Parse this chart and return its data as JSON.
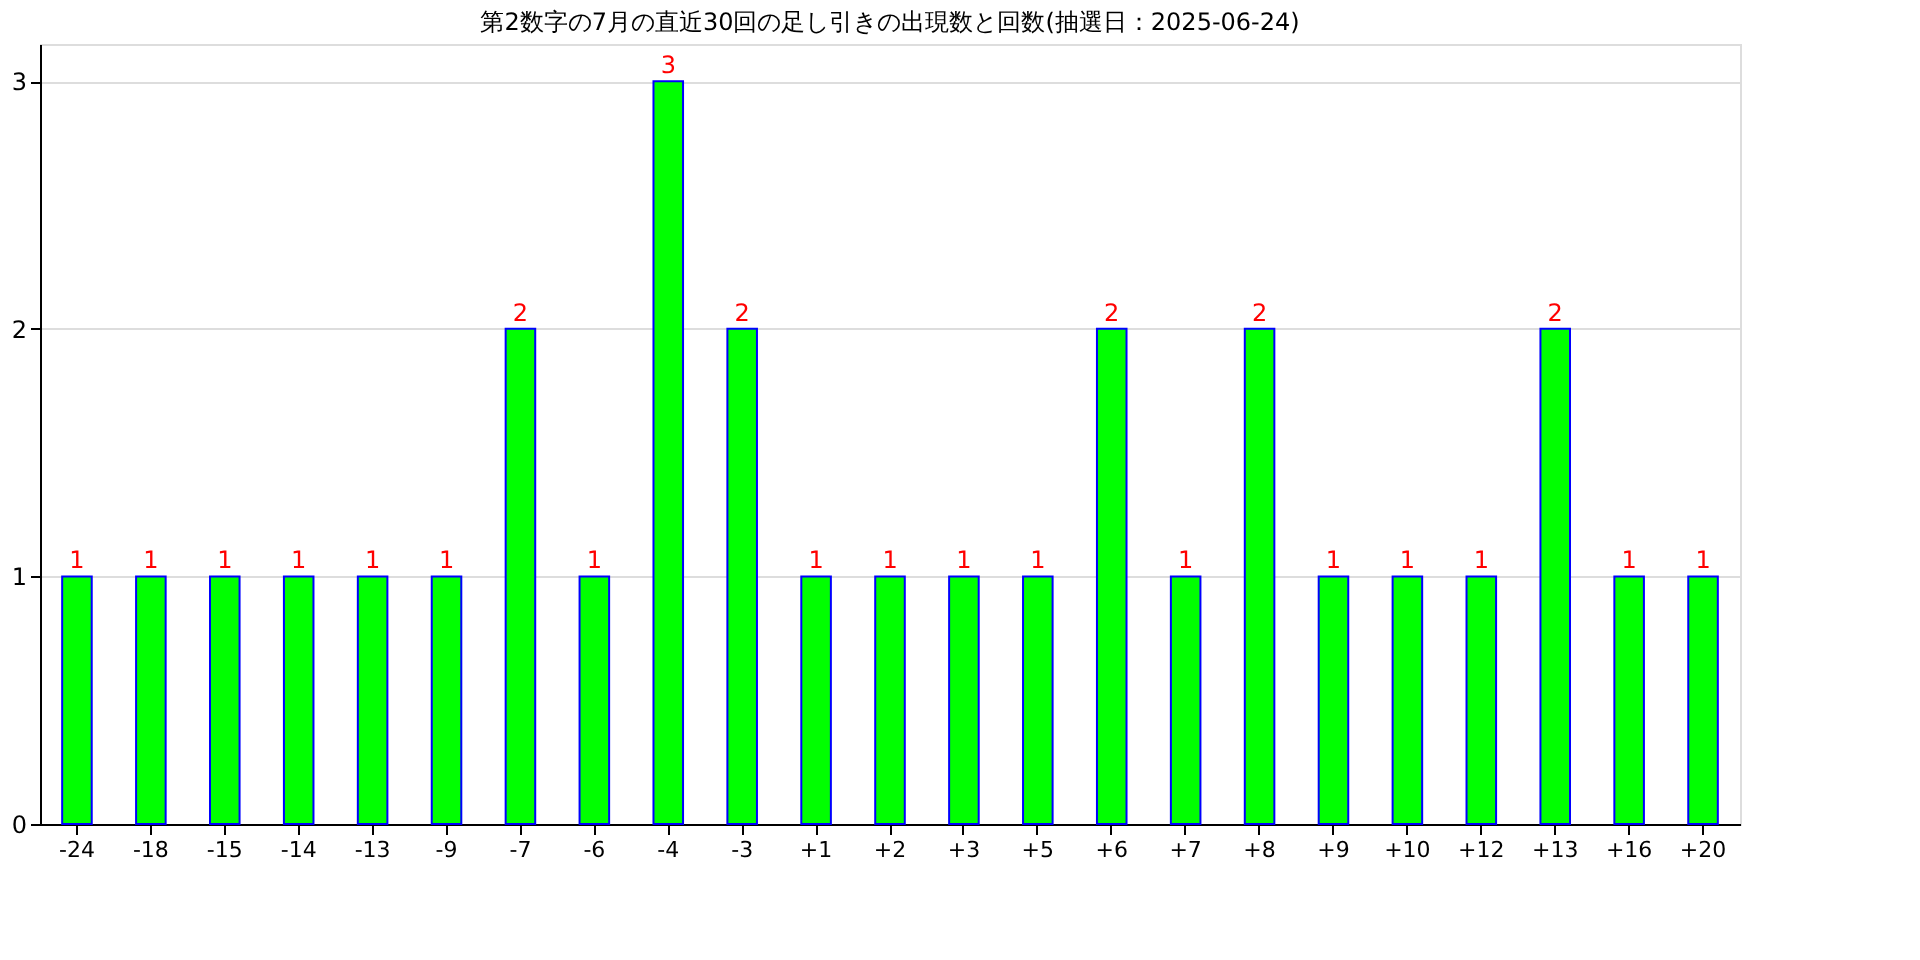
{
  "chart_data": {
    "type": "bar",
    "title": "第2数字の7月の直近30回の足し引きの出現数と回数(抽選日：2025-06-24)",
    "categories": [
      "-24",
      "-18",
      "-15",
      "-14",
      "-13",
      "-9",
      "-7",
      "-6",
      "-4",
      "-3",
      "+1",
      "+2",
      "+3",
      "+5",
      "+6",
      "+7",
      "+8",
      "+9",
      "+10",
      "+12",
      "+13",
      "+16",
      "+20"
    ],
    "values": [
      1,
      1,
      1,
      1,
      1,
      1,
      2,
      1,
      3,
      2,
      1,
      1,
      1,
      1,
      2,
      1,
      2,
      1,
      1,
      1,
      2,
      1,
      1
    ],
    "color": "#00ff00",
    "ylim": [
      0,
      3.15
    ],
    "yticks": [
      0,
      1,
      2,
      3
    ],
    "grid": "y",
    "data_labels": true
  }
}
